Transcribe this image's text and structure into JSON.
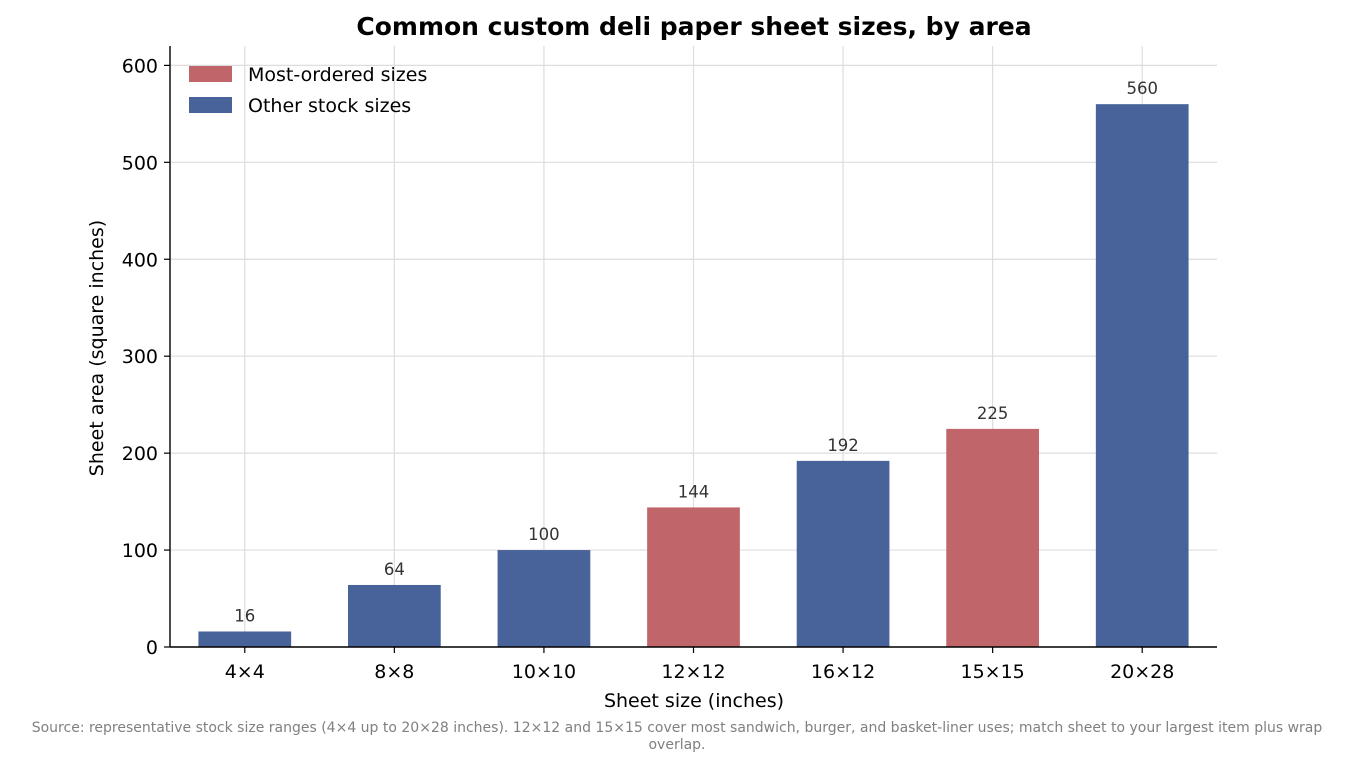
{
  "chart_data": {
    "type": "bar",
    "title": "Common custom deli paper sheet sizes, by area",
    "xlabel": "Sheet size (inches)",
    "ylabel": "Sheet area (square inches)",
    "categories": [
      "4×4",
      "8×8",
      "10×10",
      "12×12",
      "16×12",
      "15×15",
      "20×28"
    ],
    "values": [
      16,
      64,
      100,
      144,
      192,
      225,
      560
    ],
    "data_labels": [
      "16",
      "64",
      "100",
      "144",
      "192",
      "225",
      "560"
    ],
    "groups": [
      "other",
      "other",
      "other",
      "most",
      "other",
      "most",
      "other"
    ],
    "series": [
      {
        "key": "most",
        "name": "Most-ordered sizes",
        "color": "#c0666a"
      },
      {
        "key": "other",
        "name": "Other stock sizes",
        "color": "#48629a"
      }
    ],
    "ylim": [
      0,
      620
    ],
    "yticks": [
      0,
      100,
      200,
      300,
      400,
      500,
      600
    ],
    "ytick_labels": [
      "0",
      "100",
      "200",
      "300",
      "400",
      "500",
      "600"
    ],
    "grid": true,
    "legend_position": "top-left"
  },
  "source_note": "Source: representative stock size ranges (4×4 up to 20×28 inches). 12×12 and 15×15 cover most sandwich, burger, and basket-liner uses; match sheet to your largest item plus wrap overlap."
}
